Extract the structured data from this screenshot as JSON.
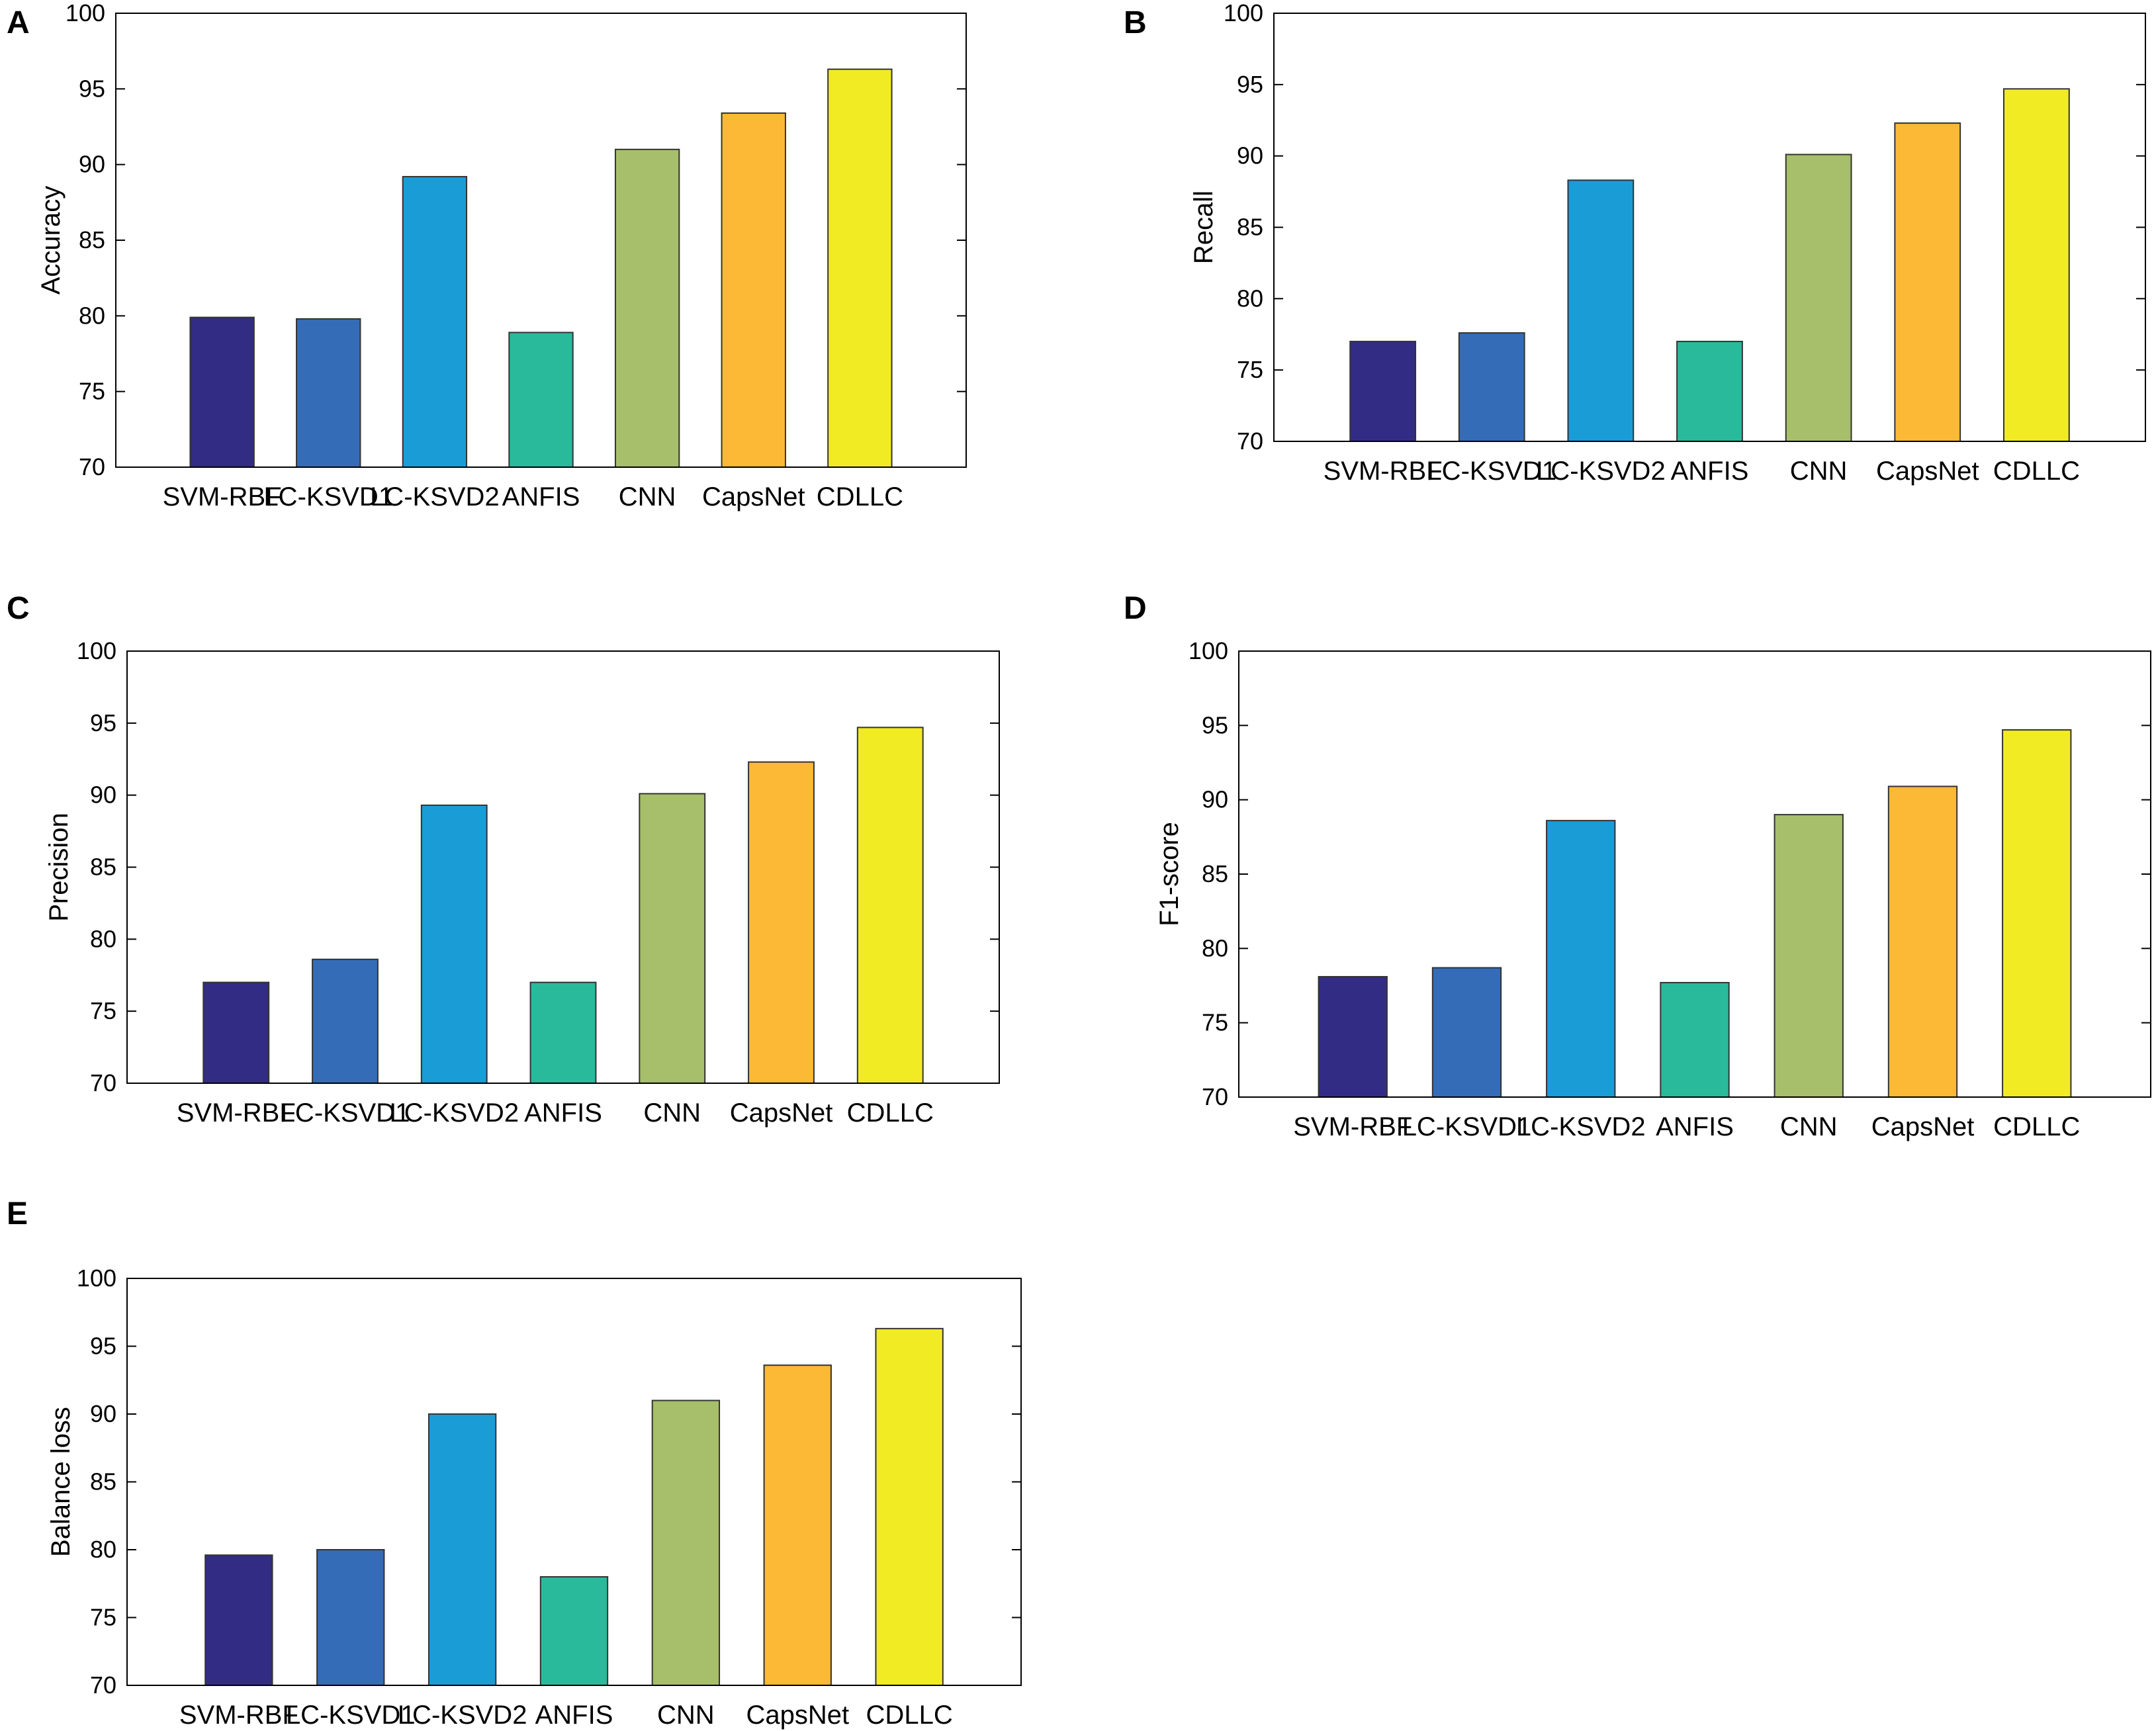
{
  "figure": {
    "colors": [
      "#332C85",
      "#346CB7",
      "#1A9CD7",
      "#29BA9C",
      "#A7BF6A",
      "#FCB936",
      "#F1EB24"
    ],
    "edge_color": "#333333"
  },
  "chart_data": [
    {
      "panel": "A",
      "type": "bar",
      "categories": [
        "SVM-RBF",
        "LC-KSVD1",
        "LC-KSVD2",
        "ANFIS",
        "CNN",
        "CapsNet",
        "CDLLC"
      ],
      "values": [
        79.9,
        79.8,
        89.2,
        78.9,
        91.0,
        93.4,
        96.3
      ],
      "title": "",
      "xlabel": "",
      "ylabel": "Accuracy",
      "ylim": [
        70,
        100
      ],
      "yticks": [
        "70",
        "75",
        "80",
        "85",
        "90",
        "95",
        "100"
      ],
      "grid": false,
      "legend": "none"
    },
    {
      "panel": "B",
      "type": "bar",
      "categories": [
        "SVM-RBF",
        "LC-KSVD1",
        "LC-KSVD2",
        "ANFIS",
        "CNN",
        "CapsNet",
        "CDLLC"
      ],
      "values": [
        77.0,
        77.6,
        88.3,
        77.0,
        90.1,
        92.3,
        94.7
      ],
      "title": "",
      "xlabel": "",
      "ylabel": "Recall",
      "ylim": [
        70,
        100
      ],
      "yticks": [
        "70",
        "75",
        "80",
        "85",
        "90",
        "95",
        "100"
      ],
      "grid": false,
      "legend": "none"
    },
    {
      "panel": "C",
      "type": "bar",
      "categories": [
        "SVM-RBF",
        "LC-KSVD1",
        "LC-KSVD2",
        "ANFIS",
        "CNN",
        "CapsNet",
        "CDLLC"
      ],
      "values": [
        77.0,
        78.6,
        89.3,
        77.0,
        90.1,
        92.3,
        94.7
      ],
      "title": "",
      "xlabel": "",
      "ylabel": "Precision",
      "ylim": [
        70,
        100
      ],
      "yticks": [
        "70",
        "75",
        "80",
        "85",
        "90",
        "95",
        "100"
      ],
      "grid": false,
      "legend": "none"
    },
    {
      "panel": "D",
      "type": "bar",
      "categories": [
        "SVM-RBF",
        "LC-KSVD1",
        "LC-KSVD2",
        "ANFIS",
        "CNN",
        "CapsNet",
        "CDLLC"
      ],
      "values": [
        78.1,
        78.7,
        88.6,
        77.7,
        89.0,
        90.9,
        94.7
      ],
      "title": "",
      "xlabel": "",
      "ylabel": "F1-score",
      "ylim": [
        70,
        100
      ],
      "yticks": [
        "70",
        "75",
        "80",
        "85",
        "90",
        "95",
        "100"
      ],
      "grid": false,
      "legend": "none"
    },
    {
      "panel": "E",
      "type": "bar",
      "categories": [
        "SVM-RBF",
        "LC-KSVD1",
        "LC-KSVD2",
        "ANFIS",
        "CNN",
        "CapsNet",
        "CDLLC"
      ],
      "values": [
        79.6,
        80.0,
        90.0,
        78.0,
        91.0,
        93.6,
        96.3
      ],
      "title": "",
      "xlabel": "",
      "ylabel": "Balance loss",
      "ylim": [
        70,
        100
      ],
      "yticks": [
        "70",
        "75",
        "80",
        "85",
        "90",
        "95",
        "100"
      ],
      "grid": false,
      "legend": "none"
    }
  ]
}
